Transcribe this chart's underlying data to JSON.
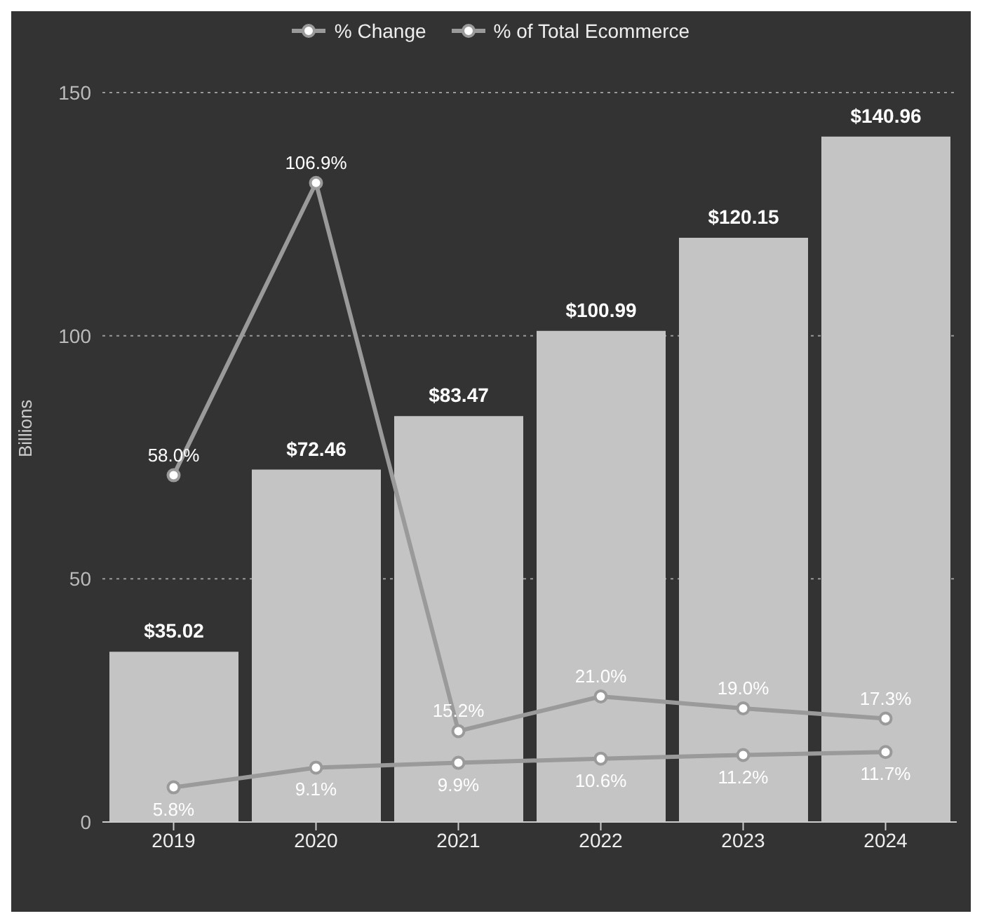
{
  "chart_data": {
    "type": "bar",
    "ylabel": "Billions",
    "categories": [
      "2019",
      "2020",
      "2021",
      "2022",
      "2023",
      "2024"
    ],
    "series": [
      {
        "color": "#c4c4c4",
        "values": [
          35.02,
          72.46,
          83.47,
          100.99,
          120.15,
          140.96
        ],
        "value_labels": [
          "$35.02",
          "$72.46",
          "$83.47",
          "$100.99",
          "$120.15",
          "$140.96"
        ]
      },
      {
        "type": "line",
        "name": "% Change",
        "axis": "y2",
        "color": "#9a9a9a",
        "values": [
          58.0,
          106.9,
          15.2,
          21.0,
          19.0,
          17.3
        ],
        "value_labels": [
          "58.0%",
          "106.9%",
          "15.2%",
          "21.0%",
          "19.0%",
          "17.3%"
        ]
      },
      {
        "type": "line",
        "name": "% of Total Ecommerce",
        "axis": "y2",
        "color": "#9a9a9a",
        "values": [
          5.8,
          9.1,
          9.9,
          10.6,
          11.2,
          11.7
        ],
        "value_labels": [
          "5.8%",
          "9.1%",
          "9.9%",
          "10.6%",
          "11.2%",
          "11.7%"
        ]
      }
    ],
    "ylim": [
      0,
      150
    ],
    "yticks": [
      0,
      50,
      100,
      150
    ],
    "y2lim": [
      0,
      122
    ],
    "grid": "y",
    "legend": "top",
    "marker": "circle",
    "line_style": "solid"
  }
}
